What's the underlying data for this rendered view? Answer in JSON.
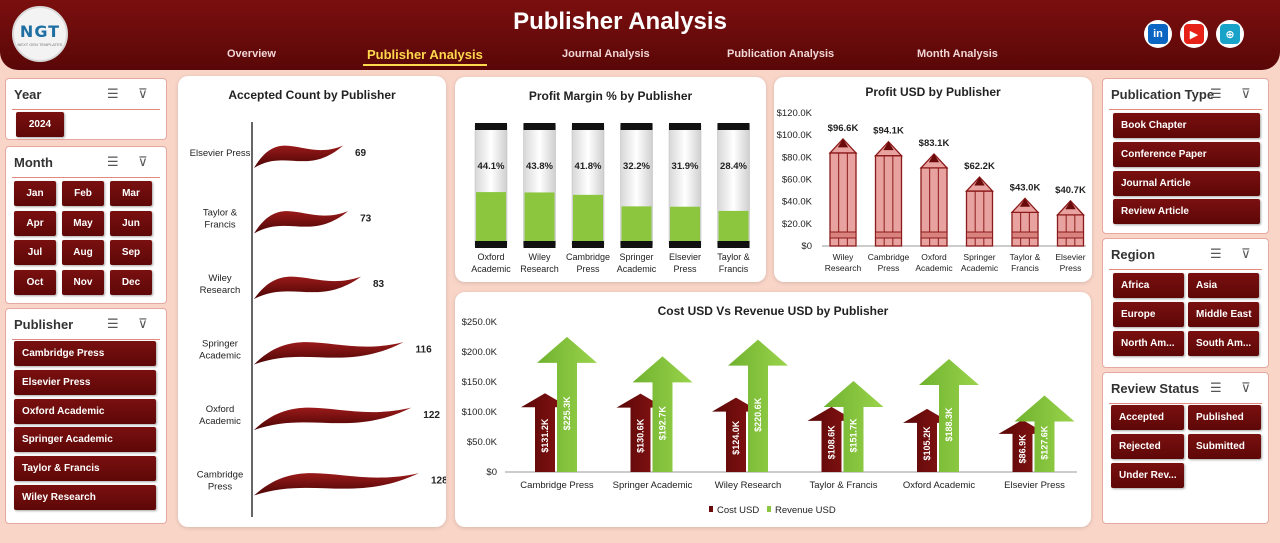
{
  "header": {
    "title": "Publisher Analysis",
    "logo_text": "NGT",
    "logo_sub": "NEXT GEN TEMPLATES",
    "nav": [
      "Overview",
      "Publisher Analysis",
      "Journal Analysis",
      "Publication Analysis",
      "Month Analysis"
    ],
    "active_nav": "Publisher Analysis",
    "social": [
      {
        "name": "linkedin-icon",
        "glyph": "in",
        "color": "#0a66c2"
      },
      {
        "name": "youtube-icon",
        "glyph": "▶",
        "color": "#e62117"
      },
      {
        "name": "globe-icon",
        "glyph": "⊕",
        "color": "#1aa3c9"
      }
    ]
  },
  "slicers": {
    "year": {
      "title": "Year",
      "items": [
        "2024"
      ]
    },
    "month": {
      "title": "Month",
      "items": [
        "Jan",
        "Feb",
        "Mar",
        "Apr",
        "May",
        "Jun",
        "Jul",
        "Aug",
        "Sep",
        "Oct",
        "Nov",
        "Dec"
      ]
    },
    "publisher": {
      "title": "Publisher",
      "items": [
        "Cambridge Press",
        "Elsevier Press",
        "Oxford Academic",
        "Springer Academic",
        "Taylor & Francis",
        "Wiley Research"
      ]
    },
    "publication_type": {
      "title": "Publication Type",
      "items": [
        "Book Chapter",
        "Conference Paper",
        "Journal Article",
        "Review Article"
      ]
    },
    "region": {
      "title": "Region",
      "items": [
        "Africa",
        "Asia",
        "Europe",
        "Middle East",
        "North Am...",
        "South Am..."
      ]
    },
    "review_status": {
      "title": "Review Status",
      "items": [
        "Accepted",
        "Published",
        "Rejected",
        "Submitted",
        "Under Rev..."
      ]
    }
  },
  "colors": {
    "maroon": "#6b0a0a",
    "green": "#8cc63f",
    "pink": "#e8a3a0"
  },
  "chart_data": [
    {
      "id": "accepted",
      "type": "bar",
      "title": "Accepted Count by Publisher",
      "categories": [
        "Elsevier Press",
        "Taylor & Francis",
        "Wiley Research",
        "Springer Academic",
        "Oxford Academic",
        "Cambridge Press"
      ],
      "values": [
        69,
        73,
        83,
        116,
        122,
        128
      ]
    },
    {
      "id": "margin",
      "type": "bar",
      "title": "Profit Margin % by Publisher",
      "categories": [
        "Oxford Academic",
        "Wiley Research",
        "Cambridge Press",
        "Springer Academic",
        "Elsevier Press",
        "Taylor & Francis"
      ],
      "values": [
        44.1,
        43.8,
        41.8,
        32.2,
        31.9,
        28.4
      ],
      "labels": [
        "44.1%",
        "43.8%",
        "41.8%",
        "32.2%",
        "31.9%",
        "28.4%"
      ]
    },
    {
      "id": "profit",
      "type": "bar",
      "title": "Profit USD by Publisher",
      "categories": [
        "Wiley Research",
        "Cambridge Press",
        "Oxford Academic",
        "Springer Academic",
        "Taylor & Francis",
        "Elsevier Press"
      ],
      "values": [
        96.6,
        94.1,
        83.1,
        62.2,
        43.0,
        40.7
      ],
      "labels": [
        "$96.6K",
        "$94.1K",
        "$83.1K",
        "$62.2K",
        "$43.0K",
        "$40.7K"
      ],
      "yticks": [
        "$0",
        "$20.0K",
        "$40.0K",
        "$60.0K",
        "$80.0K",
        "$100.0K",
        "$120.0K"
      ],
      "ylim": [
        0,
        120
      ]
    },
    {
      "id": "costrev",
      "type": "bar",
      "title": "Cost USD Vs Revenue USD by Publisher",
      "categories": [
        "Cambridge Press",
        "Springer Academic",
        "Wiley Research",
        "Taylor & Francis",
        "Oxford Academic",
        "Elsevier Press"
      ],
      "series": [
        {
          "name": "Cost USD",
          "values": [
            131.2,
            130.6,
            124.0,
            108.6,
            105.2,
            86.9
          ],
          "labels": [
            "$131.2K",
            "$130.6K",
            "$124.0K",
            "$108.6K",
            "$105.2K",
            "$86.9K"
          ]
        },
        {
          "name": "Revenue USD",
          "values": [
            225.3,
            192.7,
            220.6,
            151.7,
            188.3,
            127.6
          ],
          "labels": [
            "$225.3K",
            "$192.7K",
            "$220.6K",
            "$151.7K",
            "$188.3K",
            "$127.6K"
          ]
        }
      ],
      "yticks": [
        "$0",
        "$50.0K",
        "$100.0K",
        "$150.0K",
        "$200.0K",
        "$250.0K"
      ],
      "ylim": [
        0,
        250
      ],
      "legend": "bottom"
    }
  ]
}
